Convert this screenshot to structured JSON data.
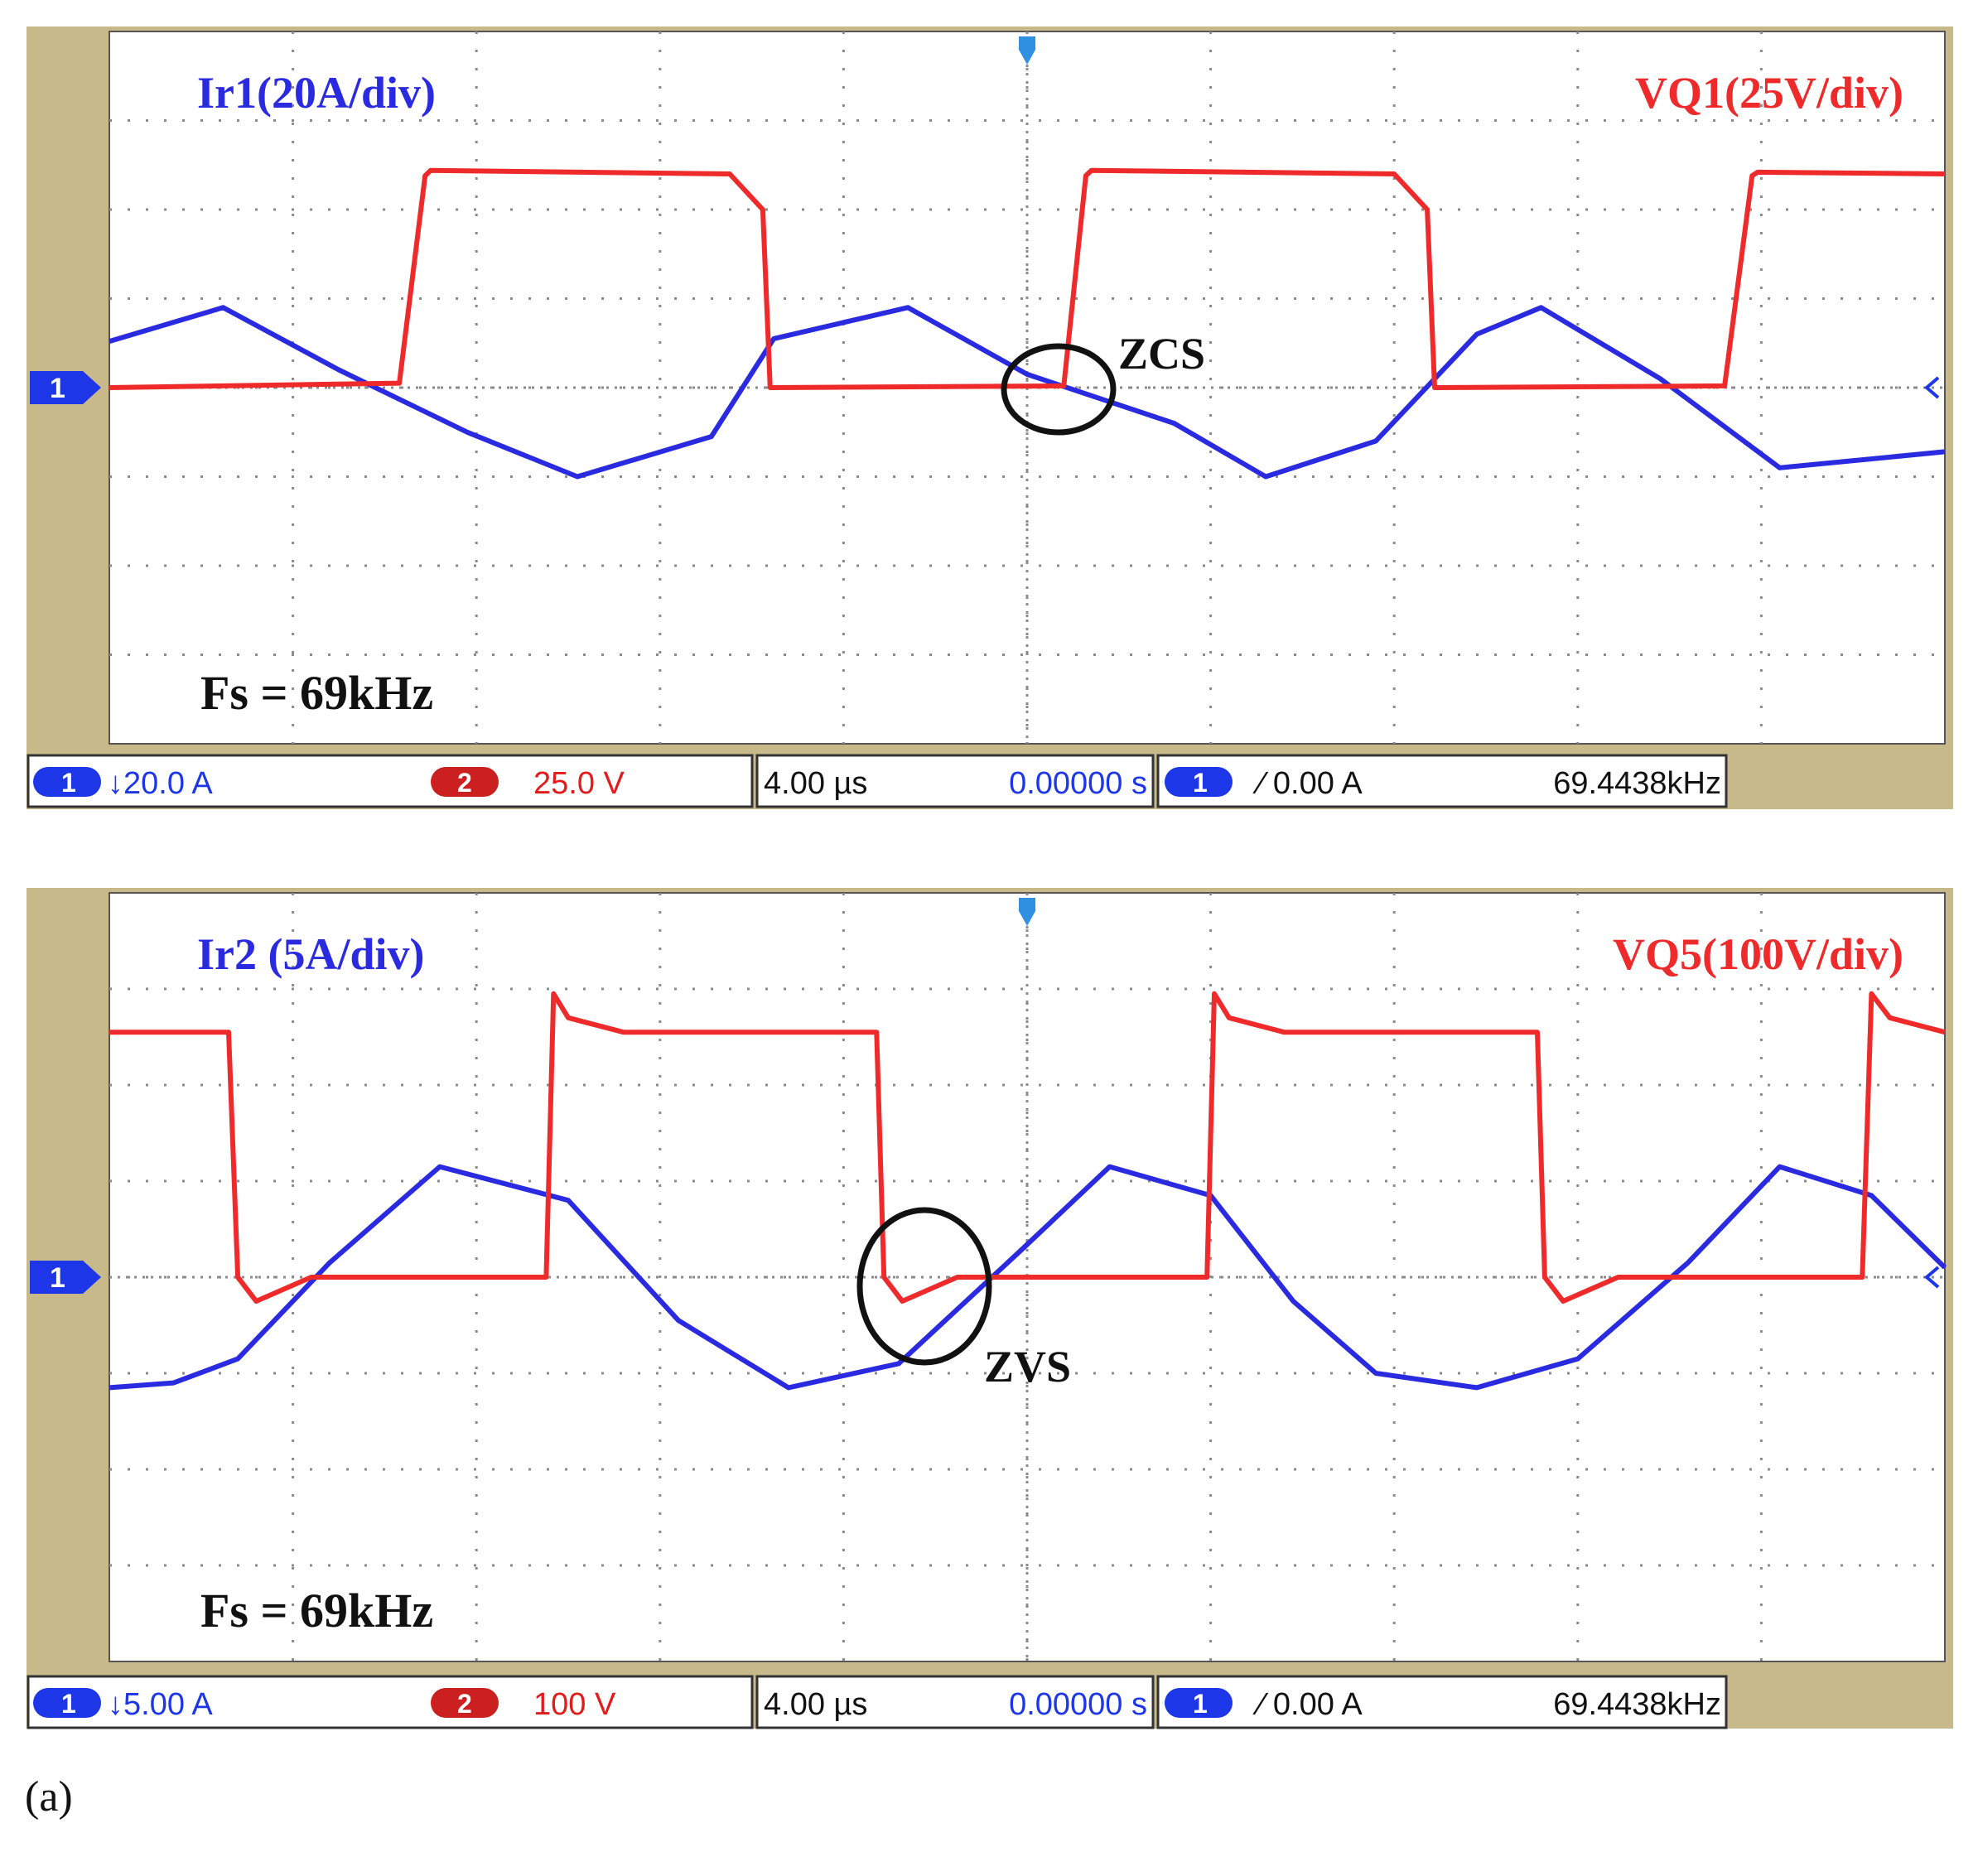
{
  "colors": {
    "frame": "#c8b98a",
    "screen": "#ffffff",
    "grid": "#8a8a8a",
    "current": "#2a2ae0",
    "voltage": "#ee2a2a",
    "annot": "#111111",
    "badge_blue": "#1d37e8",
    "badge_red": "#cc1f1f",
    "readout_blue": "#1d37e8",
    "readout_red": "#e31b1b"
  },
  "panel_label": "(a)",
  "chart_data": [
    {
      "type": "line",
      "title": "",
      "x_unit_per_div": "4.00 µs",
      "x_divisions": 10,
      "y_divisions": 8,
      "grid": true,
      "labels": {
        "current": "Ir1(20A/div)",
        "voltage": "VQ1(25V/div)",
        "freq": "Fs = 69kHz",
        "annotation": "ZCS"
      },
      "readout": {
        "ch1_badge": "1",
        "ch1_scale": "↓20.0 A",
        "ch2_badge": "2",
        "ch2_scale": "25.0 V",
        "timebase": "4.00 µs",
        "offset": "0.00000 s",
        "trig_badge": "1",
        "trigger": "∕ 0.00 A",
        "frequency": "69.4438kHz"
      },
      "ground_marker": "1",
      "series": [
        {
          "name": "Ir1",
          "unit": "div",
          "x": [
            0.0,
            0.62,
            1.25,
            1.95,
            2.55,
            3.28,
            3.62,
            4.35,
            5.0,
            5.8,
            6.3,
            6.9,
            7.45,
            7.8,
            8.45,
            9.1,
            10.0
          ],
          "y": [
            0.52,
            0.9,
            0.2,
            -0.5,
            -1.0,
            -0.55,
            0.55,
            0.9,
            0.15,
            -0.4,
            -1.0,
            -0.6,
            0.6,
            0.9,
            0.1,
            -0.9,
            -0.72
          ]
        },
        {
          "name": "VQ1",
          "unit": "div",
          "x": [
            0.0,
            1.58,
            1.72,
            1.75,
            3.38,
            3.56,
            3.6,
            5.2,
            5.32,
            5.35,
            7.0,
            7.18,
            7.22,
            8.8,
            8.95,
            8.98,
            10.0
          ],
          "y": [
            0.0,
            0.05,
            2.38,
            2.44,
            2.4,
            2.0,
            0.0,
            0.02,
            2.38,
            2.44,
            2.4,
            2.0,
            0.0,
            0.02,
            2.38,
            2.42,
            2.4
          ]
        }
      ]
    },
    {
      "type": "line",
      "title": "",
      "x_unit_per_div": "4.00 µs",
      "x_divisions": 10,
      "y_divisions": 8,
      "grid": true,
      "labels": {
        "current": "Ir2 (5A/div)",
        "voltage": "VQ5(100V/div)",
        "freq": "Fs = 69kHz",
        "annotation": "ZVS"
      },
      "readout": {
        "ch1_badge": "1",
        "ch1_scale": "↓5.00 A",
        "ch2_badge": "2",
        "ch2_scale": "100 V",
        "timebase": "4.00 µs",
        "offset": "0.00000 s",
        "trig_badge": "1",
        "trigger": "∕ 0.00 A",
        "frequency": "69.4438kHz"
      },
      "ground_marker": "1",
      "series": [
        {
          "name": "Ir2",
          "unit": "div",
          "x": [
            0.0,
            0.35,
            0.7,
            1.2,
            1.8,
            2.5,
            3.1,
            3.7,
            4.3,
            4.95,
            5.45,
            6.0,
            6.45,
            6.9,
            7.45,
            8.0,
            8.6,
            9.1,
            9.6,
            10.0
          ],
          "y": [
            -1.15,
            -1.1,
            -0.85,
            0.15,
            1.15,
            0.8,
            -0.45,
            -1.15,
            -0.9,
            0.25,
            1.15,
            0.85,
            -0.25,
            -1.0,
            -1.15,
            -0.85,
            0.15,
            1.15,
            0.85,
            0.1
          ]
        },
        {
          "name": "VQ5",
          "unit": "div",
          "x": [
            0.0,
            0.65,
            0.7,
            0.8,
            1.1,
            2.38,
            2.42,
            2.5,
            2.8,
            4.18,
            4.22,
            4.32,
            4.62,
            5.98,
            6.02,
            6.1,
            6.4,
            7.78,
            7.82,
            7.92,
            8.22,
            9.55,
            9.6,
            9.7,
            10.0
          ],
          "y": [
            2.55,
            2.55,
            0.0,
            -0.25,
            0.0,
            0.0,
            2.95,
            2.7,
            2.55,
            2.55,
            0.0,
            -0.25,
            0.0,
            0.0,
            2.95,
            2.7,
            2.55,
            2.55,
            0.0,
            -0.25,
            0.0,
            0.0,
            2.95,
            2.7,
            2.55
          ]
        }
      ]
    }
  ]
}
